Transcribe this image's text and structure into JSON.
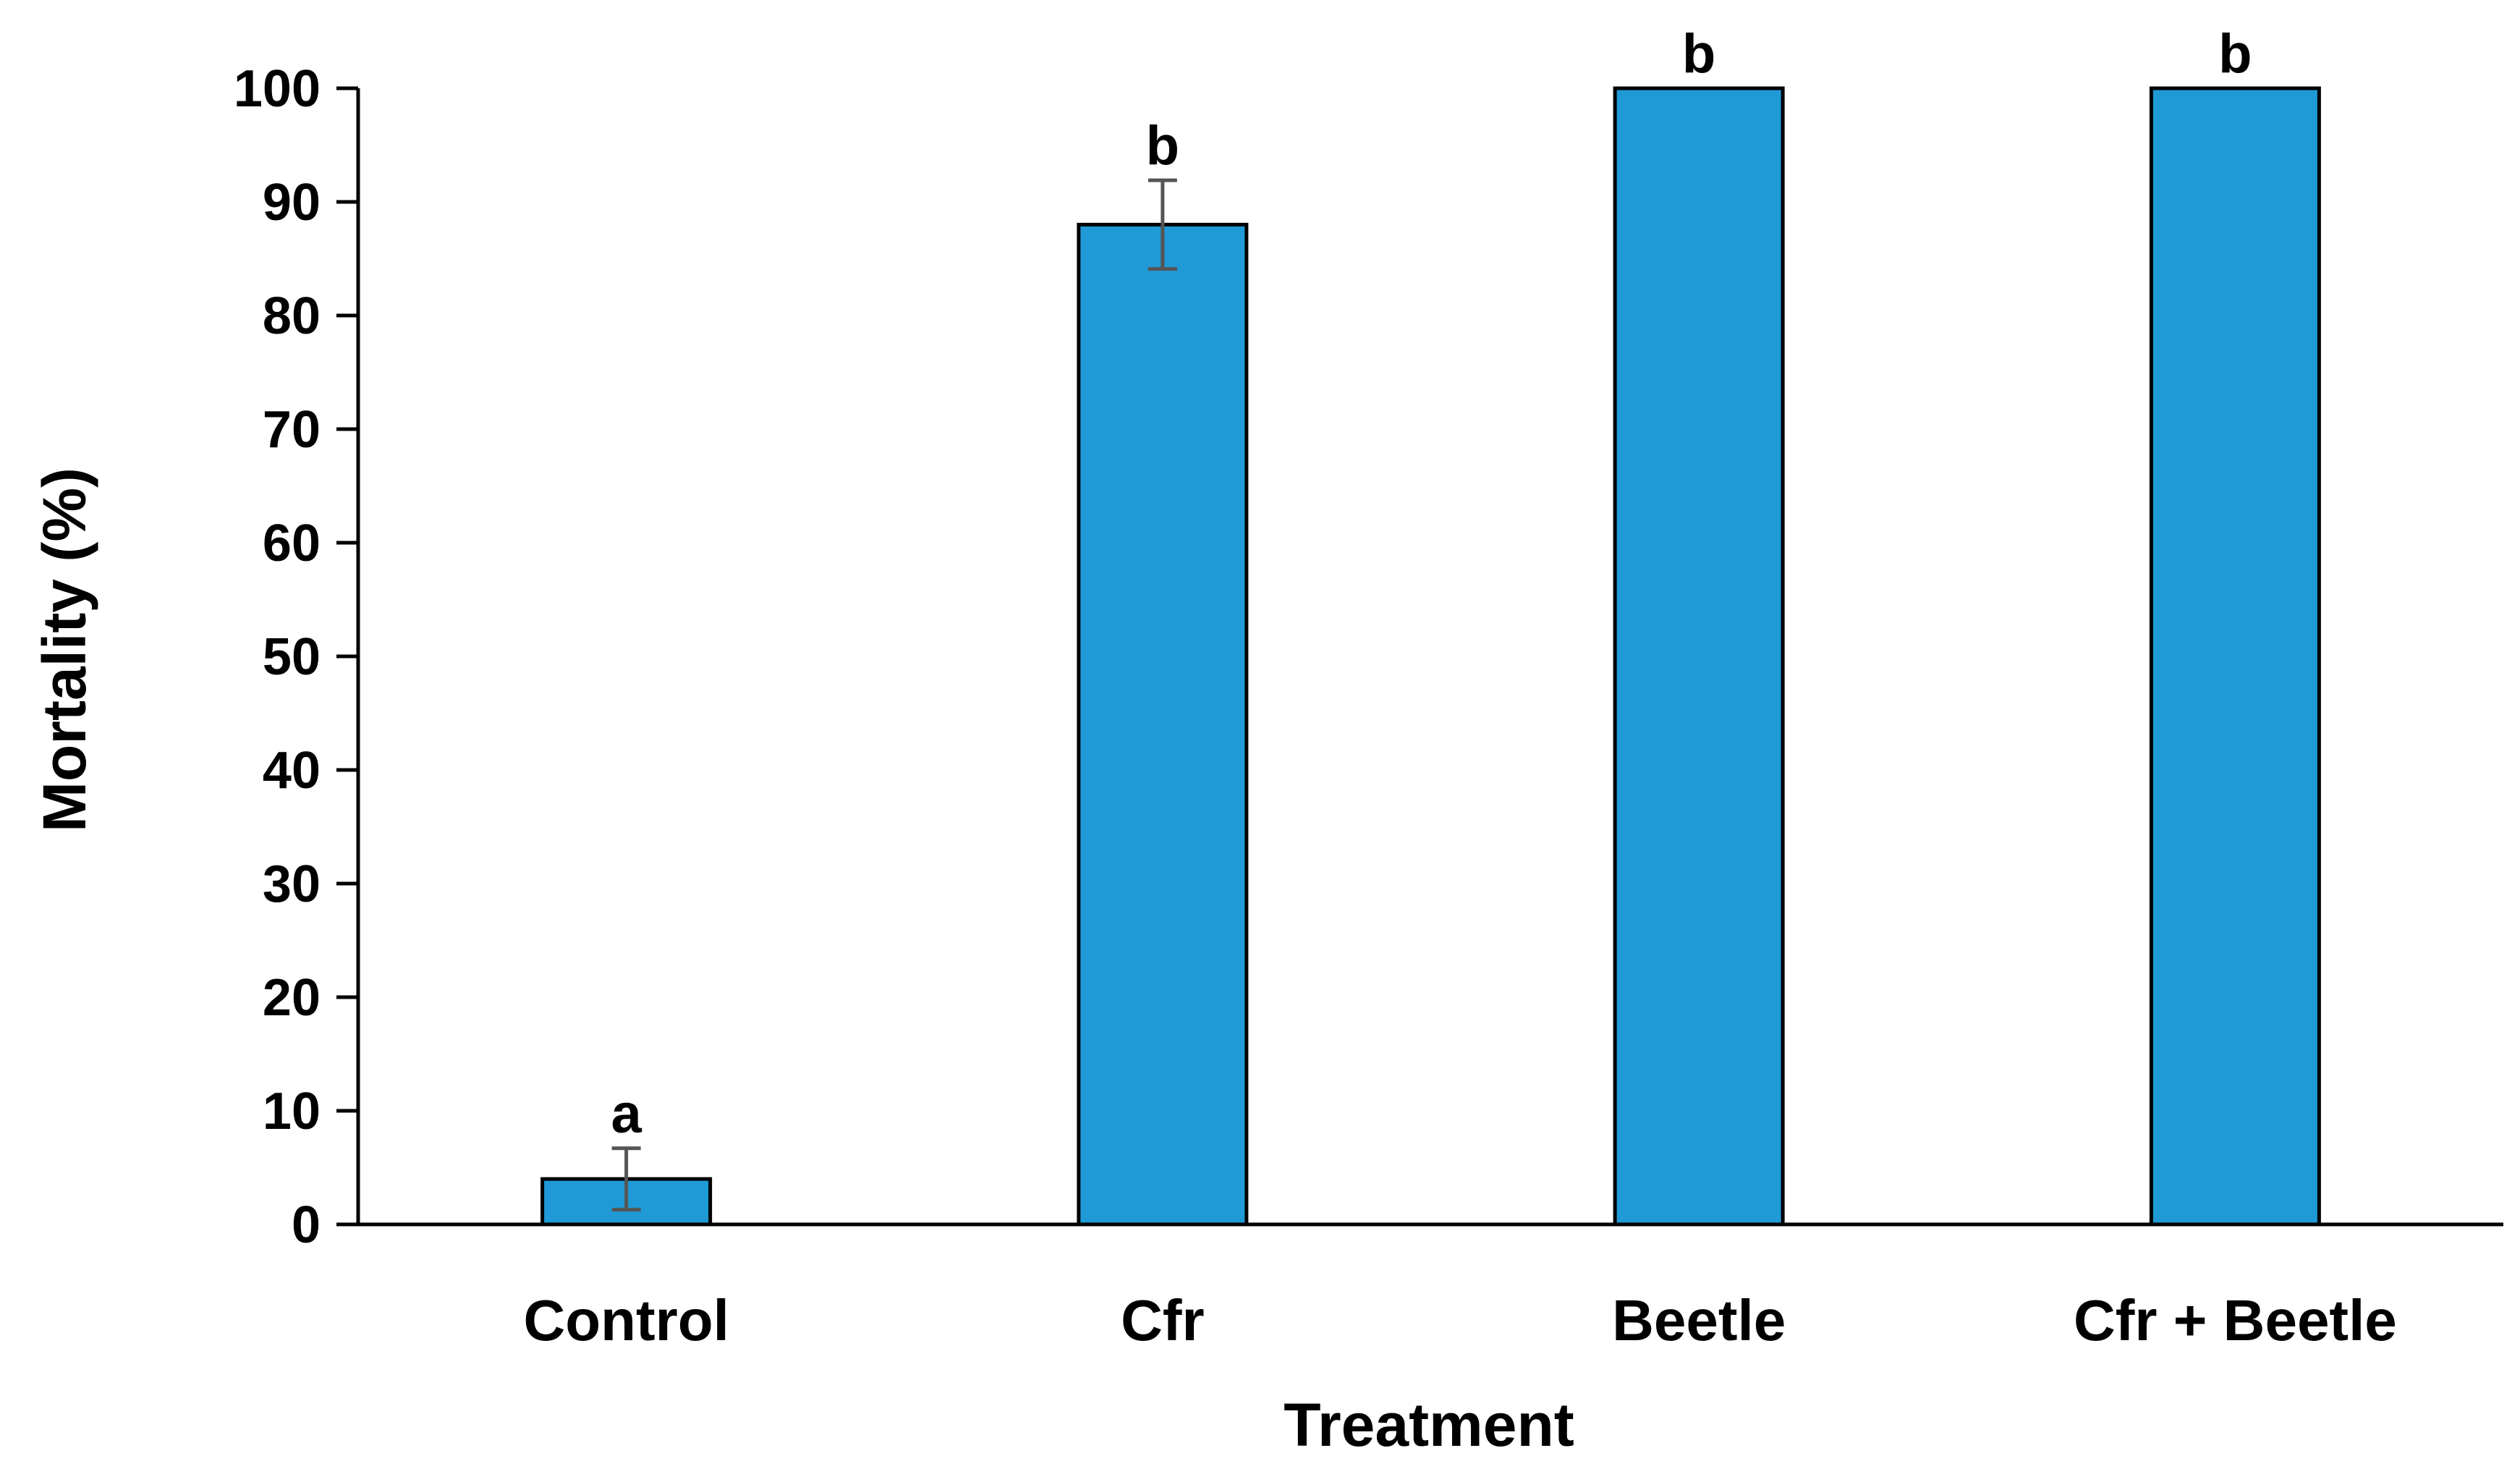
{
  "chart_data": {
    "type": "bar",
    "title": "",
    "xlabel": "Treatment",
    "ylabel": "Mortality (%)",
    "ylim": [
      0,
      100
    ],
    "yticks": [
      0,
      10,
      20,
      30,
      40,
      50,
      60,
      70,
      80,
      90,
      100
    ],
    "grid": false,
    "legend": "none",
    "categories": [
      "Control",
      "Cfr",
      "Beetle",
      "Cfr + Beetle"
    ],
    "values": [
      4,
      88,
      100,
      100
    ],
    "errors": [
      2.7,
      3.9,
      0,
      0
    ],
    "letters": [
      "a",
      "b",
      "b",
      "b"
    ],
    "bar_color": "#1f9ad6",
    "bar_edge_color": "#000000",
    "error_color": "#555555"
  }
}
